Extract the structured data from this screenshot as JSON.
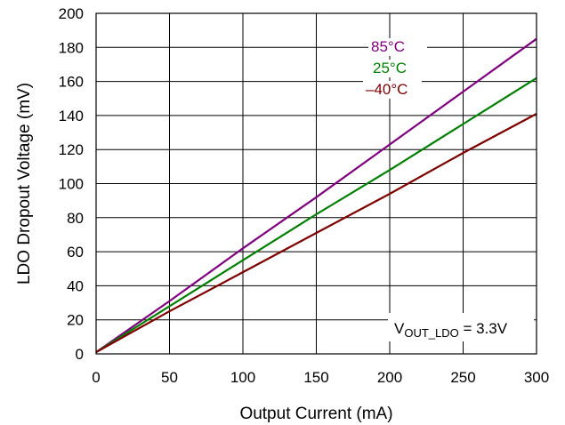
{
  "chart_data": {
    "type": "line",
    "title": "",
    "xlabel": "Output Current (mA)",
    "ylabel": "LDO Dropout Voltage (mV)",
    "xlim": [
      0,
      300
    ],
    "ylim": [
      0,
      200
    ],
    "x_ticks": [
      "0",
      "50",
      "100",
      "150",
      "200",
      "250",
      "300"
    ],
    "y_ticks": [
      "0",
      "20",
      "40",
      "60",
      "80",
      "100",
      "120",
      "140",
      "160",
      "180",
      "200"
    ],
    "grid": true,
    "series": [
      {
        "name": "85°C",
        "color": "#800080",
        "x": [
          0,
          50,
          100,
          150,
          200,
          250,
          300
        ],
        "y": [
          1,
          31,
          62,
          92,
          123,
          154,
          185
        ]
      },
      {
        "name": "25°C",
        "color": "#008000",
        "x": [
          0,
          50,
          100,
          150,
          200,
          250,
          300
        ],
        "y": [
          1,
          28,
          55,
          82,
          108,
          135,
          162
        ]
      },
      {
        "name": "–40°C",
        "color": "#800000",
        "x": [
          0,
          50,
          100,
          150,
          200,
          250,
          300
        ],
        "y": [
          1,
          25,
          48,
          71,
          94,
          118,
          141
        ]
      }
    ],
    "annotation": {
      "main": "V",
      "sub": "OUT_LDO",
      "rest": " = 3.3V"
    }
  }
}
